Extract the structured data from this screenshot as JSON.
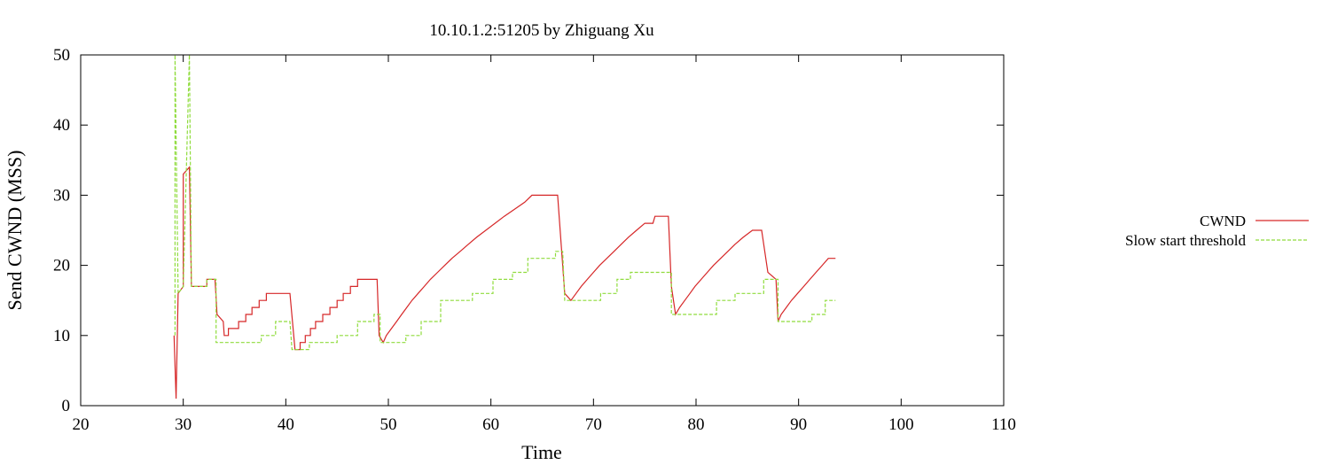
{
  "chart_data": {
    "type": "line",
    "title": "10.10.1.2:51205 by Zhiguang Xu",
    "xlabel": "Time",
    "ylabel": "Send CWND (MSS)",
    "xlim": [
      20,
      110
    ],
    "ylim": [
      0,
      50
    ],
    "xticks": [
      20,
      30,
      40,
      50,
      60,
      70,
      80,
      90,
      100,
      110
    ],
    "yticks": [
      0,
      10,
      20,
      30,
      40,
      50
    ],
    "grid": false,
    "legend_position": "right",
    "series": [
      {
        "name": "CWND",
        "color": "#d62728",
        "style": "solid",
        "points": [
          [
            29.1,
            10
          ],
          [
            29.3,
            1
          ],
          [
            29.5,
            16
          ],
          [
            30,
            17
          ],
          [
            30,
            33
          ],
          [
            30.6,
            34
          ],
          [
            30.8,
            17
          ],
          [
            32.3,
            17
          ],
          [
            32.3,
            18
          ],
          [
            33.1,
            18
          ],
          [
            33.3,
            13
          ],
          [
            33.9,
            12
          ],
          [
            34,
            10
          ],
          [
            34.4,
            10
          ],
          [
            34.4,
            11
          ],
          [
            35.4,
            11
          ],
          [
            35.4,
            12
          ],
          [
            36.1,
            12
          ],
          [
            36.1,
            13
          ],
          [
            36.7,
            13
          ],
          [
            36.7,
            14
          ],
          [
            37.4,
            14
          ],
          [
            37.4,
            15
          ],
          [
            38.1,
            15
          ],
          [
            38.1,
            16
          ],
          [
            40.4,
            16
          ],
          [
            40.9,
            8
          ],
          [
            41.4,
            8
          ],
          [
            41.4,
            9
          ],
          [
            41.9,
            9
          ],
          [
            41.9,
            10
          ],
          [
            42.4,
            10
          ],
          [
            42.4,
            11
          ],
          [
            42.9,
            11
          ],
          [
            42.9,
            12
          ],
          [
            43.6,
            12
          ],
          [
            43.6,
            13
          ],
          [
            44.3,
            13
          ],
          [
            44.3,
            14
          ],
          [
            45,
            14
          ],
          [
            45,
            15
          ],
          [
            45.6,
            15
          ],
          [
            45.6,
            16
          ],
          [
            46.3,
            16
          ],
          [
            46.3,
            17
          ],
          [
            47,
            17
          ],
          [
            47,
            18
          ],
          [
            47.8,
            18
          ],
          [
            48.9,
            18
          ],
          [
            49.1,
            10
          ],
          [
            49.5,
            9
          ],
          [
            49.8,
            10
          ],
          [
            50.3,
            11
          ],
          [
            50.8,
            12
          ],
          [
            51.3,
            13
          ],
          [
            51.8,
            14
          ],
          [
            52.3,
            15
          ],
          [
            52.9,
            16
          ],
          [
            53.5,
            17
          ],
          [
            54.1,
            18
          ],
          [
            54.8,
            19
          ],
          [
            55.5,
            20
          ],
          [
            56.2,
            21
          ],
          [
            57,
            22
          ],
          [
            57.8,
            23
          ],
          [
            58.6,
            24
          ],
          [
            59.5,
            25
          ],
          [
            60.4,
            26
          ],
          [
            61.3,
            27
          ],
          [
            62.3,
            28
          ],
          [
            63.3,
            29
          ],
          [
            64,
            30
          ],
          [
            66.5,
            30
          ],
          [
            67.2,
            16
          ],
          [
            67.8,
            15
          ],
          [
            68.3,
            16
          ],
          [
            68.8,
            17
          ],
          [
            69.4,
            18
          ],
          [
            70,
            19
          ],
          [
            70.6,
            20
          ],
          [
            71.3,
            21
          ],
          [
            72,
            22
          ],
          [
            72.7,
            23
          ],
          [
            73.4,
            24
          ],
          [
            74.2,
            25
          ],
          [
            75,
            26
          ],
          [
            75.8,
            26
          ],
          [
            76,
            27
          ],
          [
            77.3,
            27
          ],
          [
            77.6,
            17
          ],
          [
            78,
            13
          ],
          [
            78.4,
            14
          ],
          [
            78.9,
            15
          ],
          [
            79.4,
            16
          ],
          [
            79.9,
            17
          ],
          [
            80.5,
            18
          ],
          [
            81.1,
            19
          ],
          [
            81.7,
            20
          ],
          [
            82.4,
            21
          ],
          [
            83.1,
            22
          ],
          [
            83.8,
            23
          ],
          [
            84.6,
            24
          ],
          [
            85.5,
            25
          ],
          [
            86.4,
            25
          ],
          [
            87,
            19
          ],
          [
            87.8,
            18
          ],
          [
            88,
            12
          ],
          [
            88.3,
            13
          ],
          [
            88.8,
            14
          ],
          [
            89.3,
            15
          ],
          [
            89.9,
            16
          ],
          [
            90.5,
            17
          ],
          [
            91.1,
            18
          ],
          [
            91.7,
            19
          ],
          [
            92.3,
            20
          ],
          [
            92.9,
            21
          ],
          [
            93.6,
            21
          ]
        ]
      },
      {
        "name": "Slow start threshold",
        "color": "#8fdc3c",
        "style": "dashed",
        "points": [
          [
            29.2,
            10
          ],
          [
            29.2,
            50
          ],
          [
            29.5,
            16
          ],
          [
            30,
            17
          ],
          [
            30.6,
            50
          ],
          [
            30.8,
            17
          ],
          [
            32.3,
            17
          ],
          [
            32.3,
            18
          ],
          [
            33.2,
            18
          ],
          [
            33.2,
            9
          ],
          [
            37.6,
            9
          ],
          [
            37.6,
            10
          ],
          [
            39,
            10
          ],
          [
            39,
            12
          ],
          [
            40.4,
            12
          ],
          [
            40.6,
            8
          ],
          [
            42.3,
            8
          ],
          [
            42.3,
            9
          ],
          [
            43.1,
            9
          ],
          [
            43.1,
            9
          ],
          [
            45,
            9
          ],
          [
            45,
            10
          ],
          [
            47,
            10
          ],
          [
            47,
            12
          ],
          [
            48.6,
            12
          ],
          [
            48.6,
            13
          ],
          [
            49.2,
            13
          ],
          [
            49.2,
            9
          ],
          [
            51.7,
            9
          ],
          [
            51.7,
            10
          ],
          [
            53.2,
            10
          ],
          [
            53.2,
            12
          ],
          [
            55.1,
            12
          ],
          [
            55.1,
            15
          ],
          [
            58.2,
            15
          ],
          [
            58.2,
            16
          ],
          [
            60.2,
            16
          ],
          [
            60.2,
            18
          ],
          [
            62.1,
            18
          ],
          [
            62.1,
            19
          ],
          [
            63.6,
            19
          ],
          [
            63.6,
            21
          ],
          [
            66.3,
            21
          ],
          [
            66.3,
            22
          ],
          [
            67,
            22
          ],
          [
            67.2,
            15
          ],
          [
            70.7,
            15
          ],
          [
            70.7,
            16
          ],
          [
            72.3,
            16
          ],
          [
            72.3,
            18
          ],
          [
            73.6,
            18
          ],
          [
            73.6,
            19
          ],
          [
            77.6,
            19
          ],
          [
            77.6,
            13
          ],
          [
            82,
            13
          ],
          [
            82,
            15
          ],
          [
            83.8,
            15
          ],
          [
            83.8,
            16
          ],
          [
            86.6,
            16
          ],
          [
            86.6,
            18
          ],
          [
            88,
            18
          ],
          [
            88,
            12
          ],
          [
            91.3,
            12
          ],
          [
            91.3,
            13
          ],
          [
            92.6,
            13
          ],
          [
            92.6,
            15
          ],
          [
            93.6,
            15
          ]
        ]
      }
    ]
  }
}
